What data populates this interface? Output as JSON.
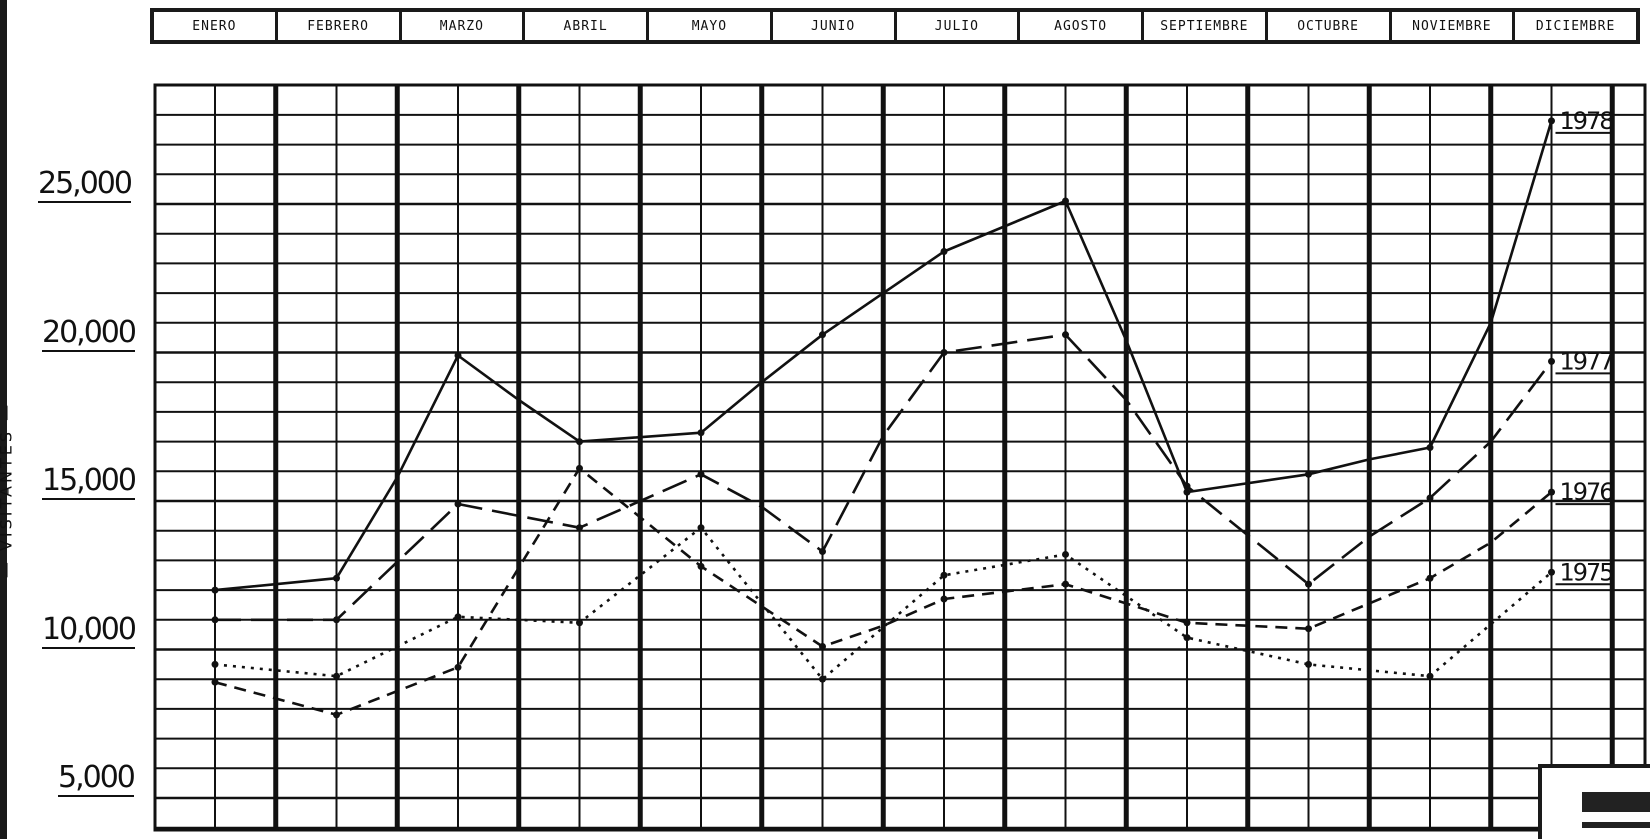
{
  "chart_data": {
    "type": "line",
    "ylabel": "— VISITANTES —",
    "categories": [
      "ENERO",
      "FEBRERO",
      "MARZO",
      "ABRIL",
      "MAYO",
      "JUNIO",
      "JULIO",
      "AGOSTO",
      "SEPTIEMBRE",
      "OCTUBRE",
      "NOVIEMBRE",
      "DICIEMBRE"
    ],
    "yticks": [
      "5,000",
      "10,000",
      "15,000",
      "20,000",
      "25,000"
    ],
    "ylim": [
      3000,
      30000
    ],
    "grid": true,
    "series": [
      {
        "name": "1978",
        "style": "solid",
        "x": [
          0,
          1,
          1.5,
          2,
          2.5,
          3,
          4,
          4.5,
          5,
          5.5,
          6,
          7,
          7.5,
          8,
          9,
          9.5,
          10,
          10.5,
          11
        ],
        "values": [
          12000,
          12400,
          15800,
          19900,
          18400,
          17000,
          17300,
          19000,
          20600,
          22000,
          23400,
          25100,
          20400,
          15300,
          15900,
          16400,
          16800,
          21000,
          27800
        ]
      },
      {
        "name": "1977",
        "style": "dashed",
        "x": [
          0,
          1,
          2,
          2.5,
          3,
          4,
          4.5,
          5,
          5.5,
          6,
          7,
          7.5,
          8,
          9,
          9.5,
          10,
          10.5,
          11
        ],
        "values": [
          11000,
          11000,
          14900,
          14500,
          14100,
          15900,
          14800,
          13300,
          17200,
          20000,
          20600,
          18400,
          15500,
          12200,
          13800,
          15100,
          17000,
          19700
        ]
      },
      {
        "name": "1976",
        "style": "short-dash",
        "x": [
          0,
          1,
          2,
          3,
          4,
          5,
          5.5,
          6,
          7,
          8,
          9,
          10,
          10.5,
          11
        ],
        "values": [
          8900,
          7800,
          9400,
          16100,
          12800,
          10100,
          10800,
          11700,
          12200,
          10900,
          10700,
          12400,
          13600,
          15300
        ]
      },
      {
        "name": "1975",
        "style": "dotted",
        "x": [
          0,
          1,
          2,
          3,
          4,
          5,
          6,
          7,
          8,
          9,
          10,
          11
        ],
        "values": [
          9500,
          9100,
          11100,
          10900,
          14100,
          9000,
          12500,
          13200,
          10400,
          9500,
          9100,
          12600
        ]
      }
    ]
  }
}
